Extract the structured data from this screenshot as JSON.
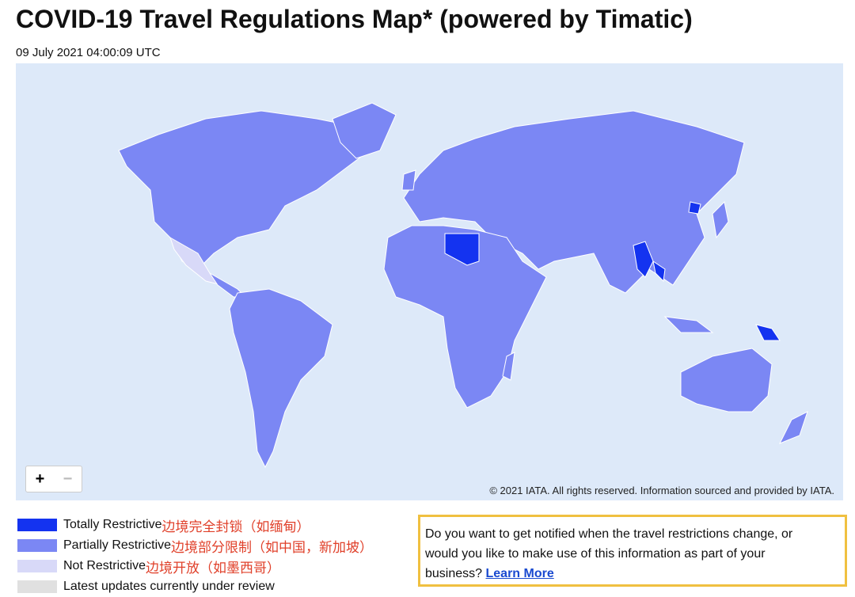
{
  "header": {
    "title": "COVID-19 Travel Regulations Map* (powered by Timatic)",
    "timestamp": "09 July 2021 04:00:09 UTC"
  },
  "map": {
    "zoom_in": "+",
    "zoom_out": "−",
    "copyright": "© 2021 IATA. All rights reserved. Information sourced and provided by IATA."
  },
  "legend": [
    {
      "label": "Totally Restrictive",
      "note": "边境完全封锁（如缅甸）",
      "color": "#1433f0"
    },
    {
      "label": "Partially Restrictive",
      "note": "边境部分限制（如中国，新加坡）",
      "color": "#7b87f4"
    },
    {
      "label": "Not Restrictive",
      "note": "边境开放（如墨西哥）",
      "color": "#d8d9f8"
    },
    {
      "label": "Latest updates currently under review",
      "color": "#e0e0e0"
    }
  ],
  "notice": {
    "lines": [
      "Do you want to get notified when the travel restrictions change, or",
      "would you like to make use of this information as part of your",
      "business?"
    ],
    "link": "Learn More"
  }
}
